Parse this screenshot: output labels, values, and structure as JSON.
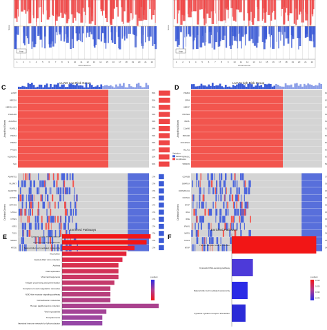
{
  "panels": {
    "C": {
      "letter": "C",
      "title": "LUAD Low Risk Group"
    },
    "D": {
      "letter": "D",
      "title": "LUAD High Risk Group"
    },
    "E": {
      "letter": "E",
      "title": "Enriched Pathways"
    },
    "F": {
      "letter": "F",
      "title": "Enriched Pathways"
    }
  },
  "colors": {
    "amplification": "#ef4646",
    "deletion": "#3b5bd6",
    "heat_red": "#f2554e",
    "heat_blue": "#4a64dc",
    "heat_grey": "#d4d4d4",
    "pval_high": "#2b2be6",
    "pval_mid": "#b13a8f",
    "pval_low": "#f21616"
  },
  "chart_data": [
    {
      "type": "bar",
      "panel": "A",
      "description_visible": "genome-wide copy number gain/loss track",
      "xlabel": "Chromosome",
      "ylabel": "Score",
      "x_ticks": [
        "1",
        "2",
        "3",
        "4",
        "5",
        "6",
        "7",
        "8",
        "9",
        "10",
        "11",
        "12",
        "13",
        "14",
        "15",
        "16",
        "17",
        "18",
        "19",
        "20",
        "21",
        "22"
      ],
      "legend": [
        "Amp",
        "Del"
      ]
    },
    {
      "type": "bar",
      "panel": "B",
      "xlabel": "Chromosome",
      "ylabel": "Score",
      "x_ticks": [
        "1",
        "2",
        "3",
        "4",
        "5",
        "6",
        "7",
        "8",
        "9",
        "10",
        "11",
        "12",
        "13",
        "14",
        "15",
        "16",
        "17",
        "18",
        "19",
        "20",
        "21",
        "22"
      ],
      "legend": [
        "Amp",
        "Del"
      ]
    },
    {
      "type": "heatmap",
      "panel": "C",
      "title": "LUAD Low Risk Group",
      "group_labels": [
        "Amplified Genes",
        "Deleted Genes"
      ],
      "amplified_genes": [
        "LCN8?",
        "UBE2Q1",
        "UBE2Q1-AS1",
        "PLEKHG5",
        "ALDH5A1",
        "RUVBL1",
        "PNMA1",
        "PNMA2",
        "PTGDS",
        "ALDH18A1",
        "SLK"
      ],
      "amplified_pct": [
        55,
        55,
        55,
        54,
        54,
        54,
        53,
        53,
        53,
        52,
        52
      ],
      "deleted_genes": [
        "ADAMTS1",
        "PLGRKT",
        "ADAMTS5",
        "ANTXR1",
        "MAP7D3",
        "UPK1A",
        "NTSR1",
        "KSR1",
        "TSS1",
        "SMAD4",
        "KRT20"
      ],
      "deleted_pct": [
        17,
        17,
        17,
        17,
        17,
        17,
        17,
        17,
        17,
        17,
        17
      ],
      "legend_title": "Variation",
      "legend": [
        "Deletion",
        "Amplification"
      ]
    },
    {
      "type": "heatmap",
      "panel": "D",
      "title": "LUAD High Risk Group",
      "group_labels": [
        "Amplified Genes",
        "Deleted Genes"
      ],
      "amplified_genes": [
        "PSMD4",
        "GPR4",
        "HBEGF",
        "PRUNE1",
        "BNIPL",
        "C1orf56",
        "PRKAB2",
        "CDC42SE1",
        "MLLT11",
        "SPANXC",
        "TMP4IP2"
      ],
      "amplified_pct": [
        62,
        62,
        62,
        61,
        61,
        61,
        60,
        60,
        60,
        60,
        59
      ],
      "deleted_genes": [
        "CDKN2B",
        "SMARCA",
        "CDKN2B-AS1",
        "CDKN2A",
        "MTAP",
        "IFNA",
        "IFNE",
        "IFNW1",
        "MIR31",
        "KLHL9",
        "MTAP"
      ],
      "deleted_pct": [
        37,
        36,
        36,
        36,
        35,
        35,
        35,
        35,
        34,
        34,
        34
      ],
      "legend_title": "Variation",
      "legend": [
        "Deletion",
        "Amplification"
      ]
    },
    {
      "type": "bar",
      "panel": "E",
      "title": "Enriched Pathways",
      "orientation": "horizontal",
      "categories": [
        "Systemic lupus erythematosus",
        "Autoimmune thyroid disease",
        "Natural killer cell mediated cytotoxicity",
        "Alcoholism",
        "Epstein-Barr virus infection",
        "Asthma",
        "Viral replication",
        "Viral carcinogenesis",
        "Antigen processing and presentation",
        "Complement and coagulation cascades",
        "NOD-like receptor signaling pathway",
        "Cell adhesion molecules",
        "Human papillomavirus infection",
        "Viral myocarditis",
        "Toxoplasmosis",
        "Intestinal immune network for IgA production"
      ],
      "values": [
        11,
        10.5,
        9,
        8,
        7.5,
        7,
        7,
        7,
        6.5,
        6,
        6,
        6,
        12,
        5.5,
        5,
        5
      ],
      "legend_title": "p.adjust"
    },
    {
      "type": "bar",
      "panel": "F",
      "title": "Enriched Pathways",
      "orientation": "horizontal",
      "categories": [
        "Herpes simplex virus 1 infection",
        "Cytosolic DNA-sensing pathway",
        "Natural killer cell mediated cytotoxicity",
        "Cytokine-cytokine receptor interaction"
      ],
      "values": [
        8,
        2,
        1.5,
        1.3
      ],
      "legend_title": "p.adjust",
      "legend_ticks": [
        "0.010",
        "0.020",
        "0.030",
        "0.040"
      ]
    }
  ],
  "axes_text": {
    "chromosome": "Chromosome",
    "score": "Score",
    "variation": "Variation",
    "deletion": "Deletion",
    "amplification": "Amplification",
    "amplified_genes": "Amplified Genes",
    "deleted_genes": "Deleted Genes",
    "padjust": "p.adjust",
    "f_ticks": [
      "0.010",
      "0.020",
      "0.030",
      "0.040"
    ]
  }
}
